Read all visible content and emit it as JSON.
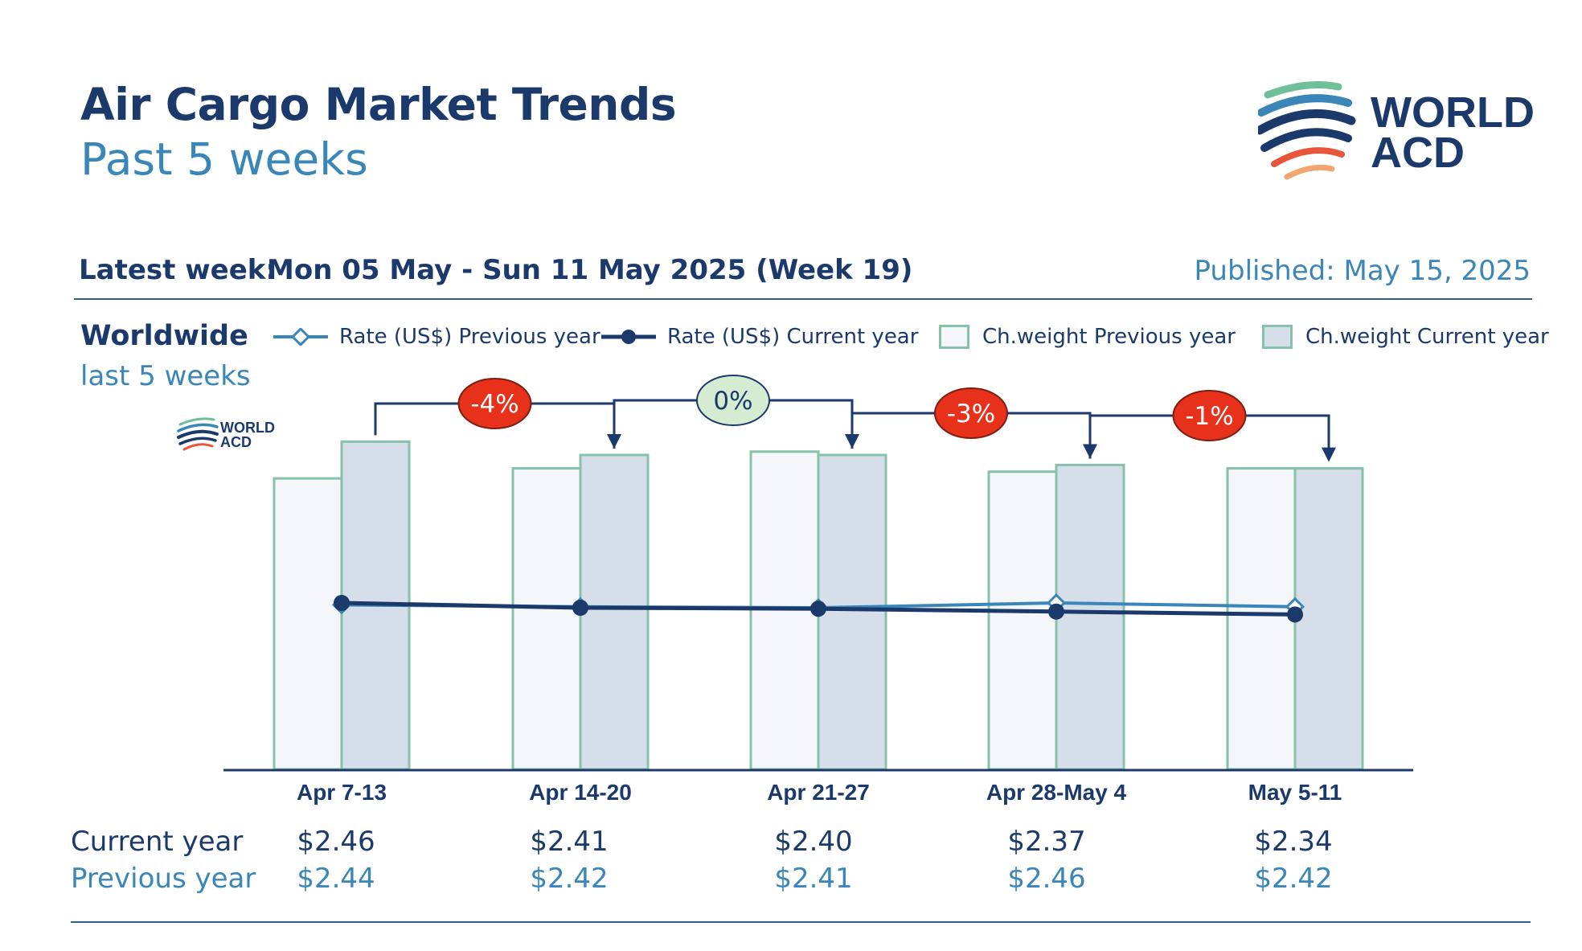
{
  "header": {
    "title": "Air Cargo Market Trends",
    "subtitle": "Past 5 weeks",
    "latest_label": "Latest week:",
    "latest_value": "Mon 05 May - Sun 11 May 2025 (Week 19)",
    "published": "Published: May 15, 2025"
  },
  "logo": {
    "line1": "WORLD",
    "line2": "ACD"
  },
  "panel": {
    "region": "Worldwide",
    "period": "last 5 weeks"
  },
  "legend": {
    "rate_prev": "Rate (US$) Previous year",
    "rate_cur": "Rate (US$) Current year",
    "cw_prev": "Ch.weight Previous year",
    "cw_cur": "Ch.weight Current year"
  },
  "colors": {
    "navy": "#1b3a6b",
    "light_blue": "#3a86b8",
    "bar_border": "#86c2a9",
    "bar_prev_fill": "#f4f6f9",
    "bar_cur_fill": "#d6dfe9",
    "badge_red": "#e8311a",
    "badge_green": "#d6ecd2"
  },
  "chart_data": {
    "type": "bar",
    "categories": [
      "Apr 7-13",
      "Apr 14-20",
      "Apr 21-27",
      "Apr 28-May 4",
      "May 5-11"
    ],
    "series": [
      {
        "name": "Ch.weight Previous year",
        "kind": "bar",
        "values": [
          0.87,
          0.9,
          0.95,
          0.89,
          0.9
        ]
      },
      {
        "name": "Ch.weight Current year",
        "kind": "bar",
        "values": [
          0.98,
          0.94,
          0.94,
          0.91,
          0.9
        ]
      },
      {
        "name": "Rate (US$) Previous year",
        "kind": "line",
        "values": [
          2.44,
          2.42,
          2.41,
          2.46,
          2.42
        ]
      },
      {
        "name": "Rate (US$) Current year",
        "kind": "line",
        "values": [
          2.46,
          2.41,
          2.4,
          2.37,
          2.34
        ]
      }
    ],
    "changes": [
      "-4%",
      "0%",
      "-3%",
      "-1%"
    ],
    "y_bar_axis": "relative chargeable weight (no axis printed)",
    "grid": false,
    "legend_placement": "top"
  },
  "table": {
    "current_label": "Current year",
    "previous_label": "Previous year",
    "current": [
      "$2.46",
      "$2.41",
      "$2.40",
      "$2.37",
      "$2.34"
    ],
    "previous": [
      "$2.44",
      "$2.42",
      "$2.41",
      "$2.46",
      "$2.42"
    ]
  }
}
